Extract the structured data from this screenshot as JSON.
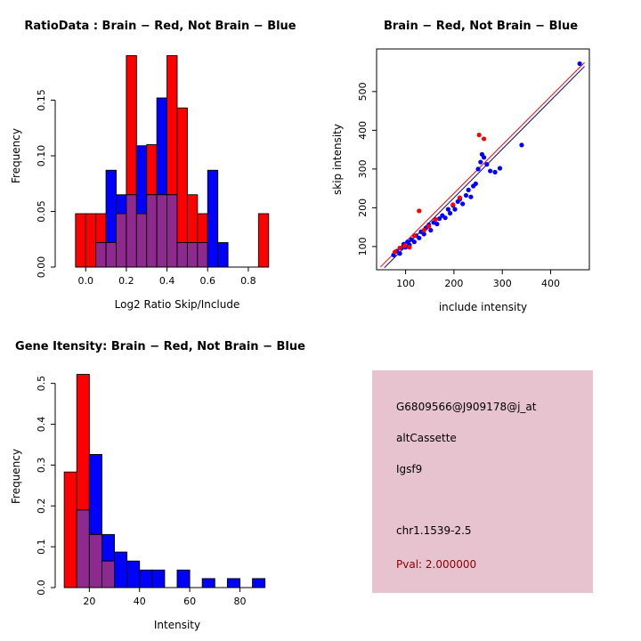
{
  "figure": {
    "background": "#ffffff"
  },
  "chart_data": [
    {
      "id": "ratio_hist",
      "type": "bar",
      "subtype": "overlaid-histogram",
      "title": "RatioData : Brain − Red, Not Brain − Blue",
      "xaxis": {
        "label": "Log2 Ratio Skip/Include",
        "ticks": [
          0.0,
          0.2,
          0.4,
          0.6,
          0.8
        ],
        "labels": [
          "0.0",
          "0.2",
          "0.4",
          "0.6",
          "0.8"
        ]
      },
      "yaxis": {
        "label": "Frequency",
        "ticks": [
          0.0,
          0.05,
          0.1,
          0.15
        ],
        "labels": [
          "0.00",
          "0.05",
          "0.10",
          "0.15"
        ]
      },
      "xlim": [
        -0.15,
        1.05
      ],
      "ylim": [
        0,
        0.2
      ],
      "bin_start": -0.05,
      "bin_width": 0.05,
      "overlap_color": "#8e2a8e",
      "series": [
        {
          "name": "Brain",
          "color": "#ff0000",
          "values": [
            0.048,
            0.048,
            0.048,
            0.022,
            0.048,
            0.19,
            0.048,
            0.11,
            0.065,
            0.19,
            0.143,
            0.065,
            0.048,
            0,
            0,
            0,
            0,
            0,
            0.048
          ]
        },
        {
          "name": "Not Brain",
          "color": "#0000ff",
          "values": [
            0,
            0,
            0.022,
            0.087,
            0.065,
            0.065,
            0.109,
            0.065,
            0.152,
            0.065,
            0.022,
            0.022,
            0.022,
            0.087,
            0.022,
            0,
            0,
            0,
            0
          ]
        }
      ]
    },
    {
      "id": "scatter",
      "type": "scatter",
      "title": "Brain − Red, Not Brain − Blue",
      "xaxis": {
        "label": "include intensity",
        "ticks": [
          100,
          200,
          300,
          400
        ],
        "labels": [
          "100",
          "200",
          "300",
          "400"
        ]
      },
      "yaxis": {
        "label": "skip intensity",
        "ticks": [
          100,
          200,
          300,
          400,
          500
        ],
        "labels": [
          "100",
          "200",
          "300",
          "400",
          "500"
        ]
      },
      "xlim": [
        40,
        480
      ],
      "ylim": [
        40,
        610
      ],
      "series": [
        {
          "name": "Not Brain",
          "color": "#0000ff",
          "points": [
            [
              75,
              78
            ],
            [
              82,
              88
            ],
            [
              88,
              82
            ],
            [
              92,
              96
            ],
            [
              96,
              106
            ],
            [
              100,
              98
            ],
            [
              104,
              112
            ],
            [
              108,
              104
            ],
            [
              112,
              118
            ],
            [
              118,
              112
            ],
            [
              122,
              128
            ],
            [
              128,
              122
            ],
            [
              132,
              138
            ],
            [
              138,
              132
            ],
            [
              142,
              148
            ],
            [
              148,
              156
            ],
            [
              152,
              142
            ],
            [
              158,
              162
            ],
            [
              165,
              158
            ],
            [
              170,
              172
            ],
            [
              176,
              180
            ],
            [
              182,
              174
            ],
            [
              188,
              196
            ],
            [
              192,
              186
            ],
            [
              198,
              206
            ],
            [
              202,
              196
            ],
            [
              208,
              216
            ],
            [
              212,
              222
            ],
            [
              218,
              210
            ],
            [
              225,
              232
            ],
            [
              230,
              246
            ],
            [
              235,
              228
            ],
            [
              240,
              256
            ],
            [
              245,
              262
            ],
            [
              250,
              300
            ],
            [
              255,
              318
            ],
            [
              258,
              338
            ],
            [
              262,
              330
            ],
            [
              268,
              312
            ],
            [
              275,
              295
            ],
            [
              285,
              292
            ],
            [
              295,
              302
            ],
            [
              340,
              362
            ],
            [
              460,
              572
            ]
          ]
        },
        {
          "name": "Brain",
          "color": "#ff0000",
          "points": [
            [
              78,
              86
            ],
            [
              88,
              96
            ],
            [
              98,
              102
            ],
            [
              108,
              98
            ],
            [
              118,
              128
            ],
            [
              128,
              192
            ],
            [
              138,
              142
            ],
            [
              148,
              152
            ],
            [
              162,
              170
            ],
            [
              198,
              208
            ],
            [
              212,
              226
            ],
            [
              252,
              388
            ],
            [
              262,
              378
            ]
          ]
        }
      ],
      "lines": [
        {
          "name": "brain-fit",
          "color": "#ff0000",
          "from": [
            48,
            47
          ],
          "to": [
            470,
            575
          ]
        },
        {
          "name": "notbrain-fit",
          "color": "#000080",
          "from": [
            56,
            45
          ],
          "to": [
            470,
            565
          ]
        }
      ]
    },
    {
      "id": "gene_hist",
      "type": "bar",
      "subtype": "overlaid-histogram",
      "title": "Gene Itensity: Brain − Red, Not Brain − Blue",
      "xaxis": {
        "label": "Intensity",
        "ticks": [
          20,
          40,
          60,
          80
        ],
        "labels": [
          "20",
          "40",
          "60",
          "80"
        ]
      },
      "yaxis": {
        "label": "Frequency",
        "ticks": [
          0.0,
          0.1,
          0.2,
          0.3,
          0.4,
          0.5
        ],
        "labels": [
          "0.0",
          "0.1",
          "0.2",
          "0.3",
          "0.4",
          "0.5"
        ]
      },
      "xlim": [
        6.4,
        103.6
      ],
      "ylim": [
        0,
        0.545
      ],
      "bin_start": 10,
      "bin_width": 5,
      "overlap_color": "#8e2a8e",
      "series": [
        {
          "name": "Brain",
          "color": "#ff0000",
          "values": [
            0.283,
            0.522,
            0.13,
            0.065,
            0,
            0,
            0,
            0,
            0,
            0,
            0,
            0,
            0,
            0,
            0,
            0
          ]
        },
        {
          "name": "Not Brain",
          "color": "#0000ff",
          "values": [
            0,
            0.19,
            0.326,
            0.13,
            0.087,
            0.065,
            0.043,
            0.043,
            0,
            0.043,
            0,
            0.022,
            0,
            0.022,
            0,
            0.022
          ]
        }
      ]
    }
  ],
  "info_box": {
    "bg_color": "#e7c2cf",
    "lines": [
      {
        "text": "G6809566@J909178@j_at",
        "color": "#000000"
      },
      {
        "text": "altCassette",
        "color": "#000000"
      },
      {
        "text": "Igsf9",
        "color": "#000000"
      },
      {
        "text": "chr1.1539-2.5",
        "color": "#000000"
      },
      {
        "text": "Pval: 2.000000",
        "color": "#8b0000"
      }
    ]
  }
}
